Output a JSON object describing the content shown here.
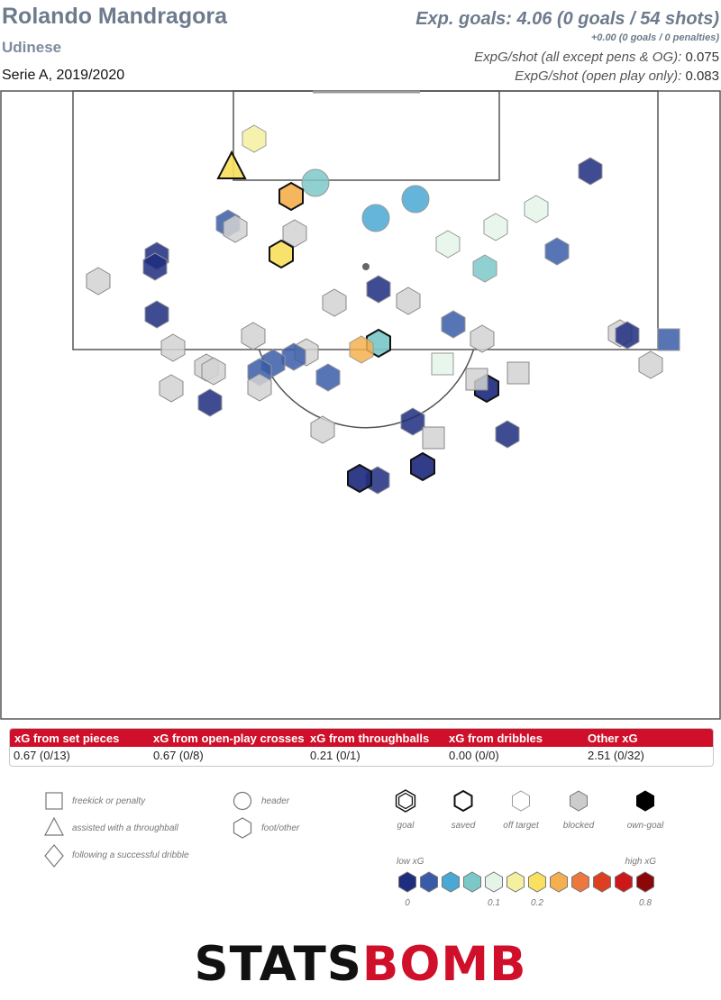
{
  "header": {
    "player": "Rolando Mandragora",
    "team": "Udinese",
    "season": "Serie A, 2019/2020",
    "xg_total": "Exp. goals: 4.06 (0 goals / 54 shots)",
    "penalties": "+0.00 (0 goals / 0 penalties)",
    "rate_all_label": "ExpG/shot (all except pens & OG):",
    "rate_all_value": "0.075",
    "rate_open_label": "ExpG/shot (open play only):",
    "rate_open_value": "0.083"
  },
  "xg_breakdown": {
    "columns": [
      {
        "label": "xG from set pieces",
        "value": "0.67 (0/13)"
      },
      {
        "label": "xG from open-play crosses",
        "value": "0.67 (0/8)"
      },
      {
        "label": "xG from throughballs",
        "value": "0.21 (0/1)"
      },
      {
        "label": "xG from dribbles",
        "value": "0.00 (0/0)"
      },
      {
        "label": "Other xG",
        "value": "2.51 (0/32)"
      }
    ]
  },
  "legend": {
    "shapes": {
      "freekick": "freekick or penalty",
      "throughball": "assisted with a throughball",
      "dribble": "following a successful dribble",
      "header": "header",
      "foot": "foot/other"
    },
    "outcomes": {
      "goal": "goal",
      "saved": "saved",
      "off_target": "off target",
      "blocked": "blocked",
      "own_goal": "own-goal"
    },
    "scale": {
      "low": "low xG",
      "high": "high xG",
      "ticks": [
        "0",
        "0.1",
        "0.2",
        "0.8"
      ],
      "colors": [
        "#1f2d7f",
        "#3a5ca8",
        "#4aa8d4",
        "#7cc8c8",
        "#e4f4e8",
        "#f4f0a0",
        "#f8e060",
        "#f4b050",
        "#ec7840",
        "#dc4020",
        "#cc1818",
        "#8c0808"
      ]
    }
  },
  "brand": {
    "part1": "STATS",
    "part2": "BOMB"
  },
  "chart_data": {
    "type": "scatter",
    "title": "Rolando Mandragora",
    "x_axis": "pitch width (0-80)",
    "y_axis": "distance from goal line (0-60)",
    "xlim": [
      0,
      80
    ],
    "ylim": [
      0,
      60
    ],
    "shots": [
      {
        "x": 25.7,
        "y": 8.4,
        "shape": "triangle",
        "outcome": "saved",
        "xg": 0.2
      },
      {
        "x": 28.2,
        "y": 5.4,
        "shape": "hex",
        "outcome": "off",
        "xg": 0.15
      },
      {
        "x": 35.0,
        "y": 10.3,
        "shape": "circle",
        "outcome": "off",
        "xg": 0.09
      },
      {
        "x": 32.3,
        "y": 11.8,
        "shape": "hex",
        "outcome": "saved",
        "xg": 0.25
      },
      {
        "x": 46.1,
        "y": 12.1,
        "shape": "circle",
        "outcome": "off",
        "xg": 0.07
      },
      {
        "x": 41.7,
        "y": 14.2,
        "shape": "circle",
        "outcome": "off",
        "xg": 0.06
      },
      {
        "x": 25.3,
        "y": 14.8,
        "shape": "hex",
        "outcome": "off",
        "xg": 0.04
      },
      {
        "x": 26.1,
        "y": 15.4,
        "shape": "hex",
        "outcome": "blocked",
        "xg": 0.04
      },
      {
        "x": 32.7,
        "y": 15.9,
        "shape": "hex",
        "outcome": "blocked",
        "xg": 0.04
      },
      {
        "x": 31.2,
        "y": 18.2,
        "shape": "hex",
        "outcome": "saved",
        "xg": 0.19
      },
      {
        "x": 59.5,
        "y": 13.2,
        "shape": "hex",
        "outcome": "off",
        "xg": 0.11
      },
      {
        "x": 55.0,
        "y": 15.2,
        "shape": "hex",
        "outcome": "off",
        "xg": 0.12
      },
      {
        "x": 49.7,
        "y": 17.1,
        "shape": "hex",
        "outcome": "off",
        "xg": 0.11
      },
      {
        "x": 53.8,
        "y": 19.8,
        "shape": "hex",
        "outcome": "off",
        "xg": 0.09
      },
      {
        "x": 61.8,
        "y": 17.9,
        "shape": "hex",
        "outcome": "off",
        "xg": 0.04
      },
      {
        "x": 65.5,
        "y": 9.0,
        "shape": "hex",
        "outcome": "off",
        "xg": 0.02
      },
      {
        "x": 17.4,
        "y": 18.4,
        "shape": "hex",
        "outcome": "off",
        "xg": 0.02
      },
      {
        "x": 17.2,
        "y": 19.6,
        "shape": "hex",
        "outcome": "off",
        "xg": 0.02
      },
      {
        "x": 10.9,
        "y": 21.2,
        "shape": "hex",
        "outcome": "blocked",
        "xg": 0.02
      },
      {
        "x": 42.0,
        "y": 22.1,
        "shape": "hex",
        "outcome": "off",
        "xg": 0.02
      },
      {
        "x": 37.1,
        "y": 23.6,
        "shape": "hex",
        "outcome": "blocked",
        "xg": 0.02
      },
      {
        "x": 45.3,
        "y": 23.4,
        "shape": "hex",
        "outcome": "blocked",
        "xg": 0.02
      },
      {
        "x": 17.4,
        "y": 24.9,
        "shape": "hex",
        "outcome": "off",
        "xg": 0.02
      },
      {
        "x": 50.3,
        "y": 26.0,
        "shape": "hex",
        "outcome": "off",
        "xg": 0.04
      },
      {
        "x": 28.1,
        "y": 27.3,
        "shape": "hex",
        "outcome": "blocked",
        "xg": 0.02
      },
      {
        "x": 53.5,
        "y": 27.6,
        "shape": "hex",
        "outcome": "blocked",
        "xg": 0.02
      },
      {
        "x": 42.0,
        "y": 28.1,
        "shape": "hex",
        "outcome": "saved",
        "xg": 0.08
      },
      {
        "x": 40.1,
        "y": 28.8,
        "shape": "hex",
        "outcome": "off",
        "xg": 0.25
      },
      {
        "x": 19.2,
        "y": 28.6,
        "shape": "hex",
        "outcome": "blocked",
        "xg": 0.02
      },
      {
        "x": 34.0,
        "y": 29.1,
        "shape": "hex",
        "outcome": "blocked",
        "xg": 0.02
      },
      {
        "x": 32.6,
        "y": 29.6,
        "shape": "hex",
        "outcome": "off",
        "xg": 0.04
      },
      {
        "x": 30.3,
        "y": 30.3,
        "shape": "hex",
        "outcome": "off",
        "xg": 0.04
      },
      {
        "x": 22.9,
        "y": 30.8,
        "shape": "hex",
        "outcome": "blocked",
        "xg": 0.02
      },
      {
        "x": 23.7,
        "y": 31.2,
        "shape": "hex",
        "outcome": "blocked",
        "xg": 0.02
      },
      {
        "x": 28.8,
        "y": 31.3,
        "shape": "hex",
        "outcome": "off",
        "xg": 0.04
      },
      {
        "x": 36.4,
        "y": 31.9,
        "shape": "hex",
        "outcome": "off",
        "xg": 0.04
      },
      {
        "x": 19.0,
        "y": 33.1,
        "shape": "hex",
        "outcome": "blocked",
        "xg": 0.02
      },
      {
        "x": 28.8,
        "y": 33.0,
        "shape": "hex",
        "outcome": "blocked",
        "xg": 0.02
      },
      {
        "x": 23.3,
        "y": 34.7,
        "shape": "hex",
        "outcome": "off",
        "xg": 0.02
      },
      {
        "x": 54.0,
        "y": 33.1,
        "shape": "hex",
        "outcome": "saved",
        "xg": 0.02
      },
      {
        "x": 68.8,
        "y": 27.0,
        "shape": "hex",
        "outcome": "blocked",
        "xg": 0.02
      },
      {
        "x": 69.6,
        "y": 27.2,
        "shape": "hex",
        "outcome": "off",
        "xg": 0.02
      },
      {
        "x": 72.2,
        "y": 30.5,
        "shape": "hex",
        "outcome": "blocked",
        "xg": 0.02
      },
      {
        "x": 35.8,
        "y": 37.7,
        "shape": "hex",
        "outcome": "blocked",
        "xg": 0.02
      },
      {
        "x": 45.8,
        "y": 36.8,
        "shape": "hex",
        "outcome": "off",
        "xg": 0.02
      },
      {
        "x": 56.3,
        "y": 38.2,
        "shape": "hex",
        "outcome": "off",
        "xg": 0.02
      },
      {
        "x": 46.9,
        "y": 41.8,
        "shape": "hex",
        "outcome": "saved",
        "xg": 0.02
      },
      {
        "x": 41.9,
        "y": 43.3,
        "shape": "hex",
        "outcome": "off",
        "xg": 0.02
      },
      {
        "x": 39.9,
        "y": 43.1,
        "shape": "hex",
        "outcome": "saved",
        "xg": 0.01
      },
      {
        "x": 49.1,
        "y": 30.4,
        "shape": "square",
        "outcome": "off",
        "xg": 0.1
      },
      {
        "x": 52.9,
        "y": 32.1,
        "shape": "square",
        "outcome": "blocked",
        "xg": 0.02
      },
      {
        "x": 57.5,
        "y": 31.4,
        "shape": "square",
        "outcome": "blocked",
        "xg": 0.02
      },
      {
        "x": 74.2,
        "y": 27.7,
        "shape": "square",
        "outcome": "off",
        "xg": 0.03
      },
      {
        "x": 48.1,
        "y": 38.6,
        "shape": "square",
        "outcome": "blocked",
        "xg": 0.02
      }
    ]
  }
}
